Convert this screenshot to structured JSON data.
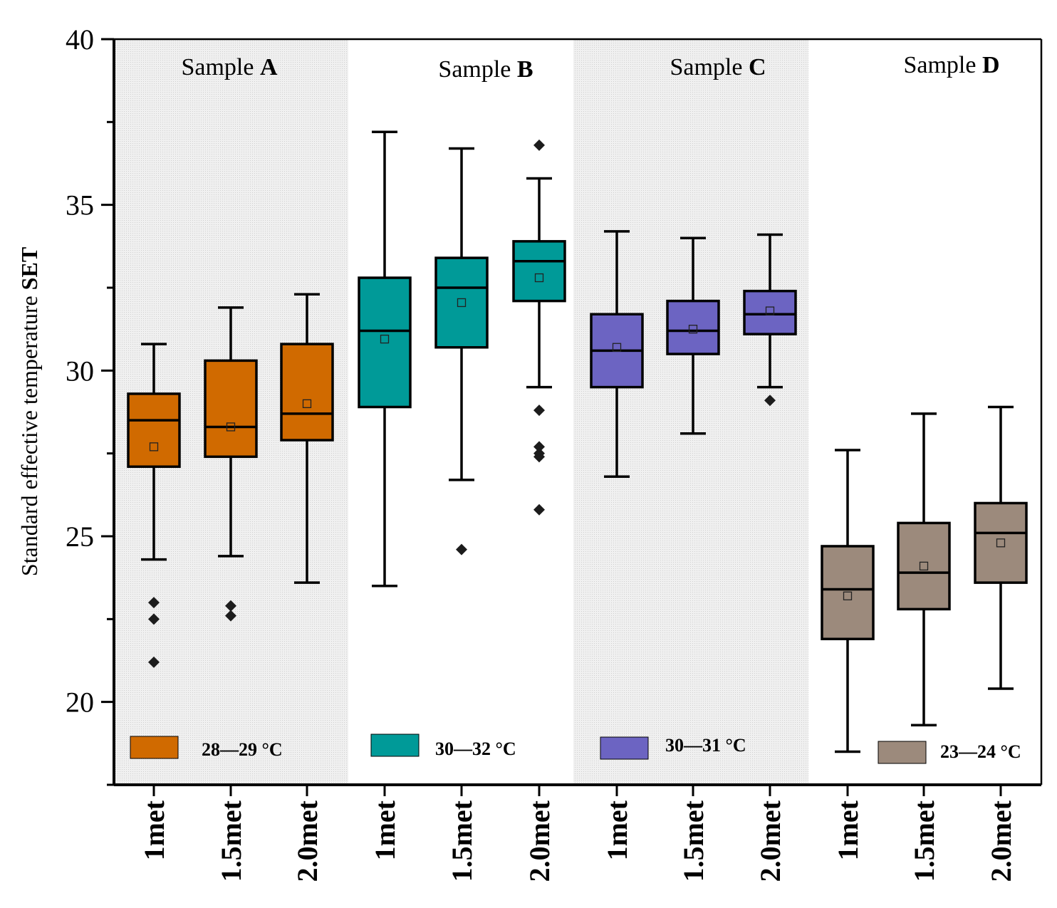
{
  "chart_data": {
    "type": "box",
    "ylabel_prefix": "Standard effective temperature ",
    "ylabel_bold": "SET",
    "ylim": [
      17.5,
      40
    ],
    "yticks": [
      20,
      25,
      30,
      35,
      40
    ],
    "categories": [
      "1met",
      "1.5met",
      "2.0met",
      "1met",
      "1.5met",
      "2.0met",
      "1met",
      "1.5met",
      "2.0met",
      "1met",
      "1.5met",
      "2.0met"
    ],
    "groups": [
      {
        "prefix": "Sample ",
        "letter": "A",
        "color": "#d06a00",
        "legend": "28—29 °C",
        "shaded": true,
        "boxes": [
          {
            "whisker_low": 24.3,
            "q1": 27.1,
            "median": 28.5,
            "q3": 29.3,
            "whisker_high": 30.8,
            "mean": 27.7,
            "outliers": [
              23.0,
              22.5,
              21.2
            ]
          },
          {
            "whisker_low": 24.4,
            "q1": 27.4,
            "median": 28.3,
            "q3": 30.3,
            "whisker_high": 31.9,
            "mean": 28.3,
            "outliers": [
              22.9,
              22.6
            ]
          },
          {
            "whisker_low": 23.6,
            "q1": 27.9,
            "median": 28.7,
            "q3": 30.8,
            "whisker_high": 32.3,
            "mean": 29.0,
            "outliers": []
          }
        ]
      },
      {
        "prefix": "Sample ",
        "letter": "B",
        "color": "#009a98",
        "legend": "30—32 °C",
        "shaded": false,
        "boxes": [
          {
            "whisker_low": 23.5,
            "q1": 28.9,
            "median": 31.2,
            "q3": 32.8,
            "whisker_high": 37.2,
            "mean": 30.95,
            "outliers": []
          },
          {
            "whisker_low": 26.7,
            "q1": 30.7,
            "median": 32.5,
            "q3": 33.4,
            "whisker_high": 36.7,
            "mean": 32.05,
            "outliers": [
              24.6
            ]
          },
          {
            "whisker_low": 29.5,
            "q1": 32.1,
            "median": 33.3,
            "q3": 33.9,
            "whisker_high": 35.8,
            "mean": 32.8,
            "outliers": [
              36.8,
              28.8,
              27.7,
              27.5,
              27.4,
              25.8
            ]
          }
        ]
      },
      {
        "prefix": "Sample ",
        "letter": "C",
        "color": "#6c64c2",
        "legend": "30—31 °C",
        "shaded": true,
        "boxes": [
          {
            "whisker_low": 26.8,
            "q1": 29.5,
            "median": 30.6,
            "q3": 31.7,
            "whisker_high": 34.2,
            "mean": 30.7,
            "outliers": []
          },
          {
            "whisker_low": 28.1,
            "q1": 30.5,
            "median": 31.2,
            "q3": 32.1,
            "whisker_high": 34.0,
            "mean": 31.25,
            "outliers": []
          },
          {
            "whisker_low": 29.5,
            "q1": 31.1,
            "median": 31.7,
            "q3": 32.4,
            "whisker_high": 34.1,
            "mean": 31.8,
            "outliers": [
              29.1
            ]
          }
        ]
      },
      {
        "prefix": "Sample ",
        "letter": "D",
        "color": "#9c8a7c",
        "legend": "23—24 °C",
        "shaded": false,
        "boxes": [
          {
            "whisker_low": 18.5,
            "q1": 21.9,
            "median": 23.4,
            "q3": 24.7,
            "whisker_high": 27.6,
            "mean": 23.2,
            "outliers": []
          },
          {
            "whisker_low": 19.3,
            "q1": 22.8,
            "median": 23.9,
            "q3": 25.4,
            "whisker_high": 28.7,
            "mean": 24.1,
            "outliers": []
          },
          {
            "whisker_low": 20.4,
            "q1": 23.6,
            "median": 25.1,
            "q3": 26.0,
            "whisker_high": 28.9,
            "mean": 24.8,
            "outliers": []
          }
        ]
      }
    ]
  }
}
